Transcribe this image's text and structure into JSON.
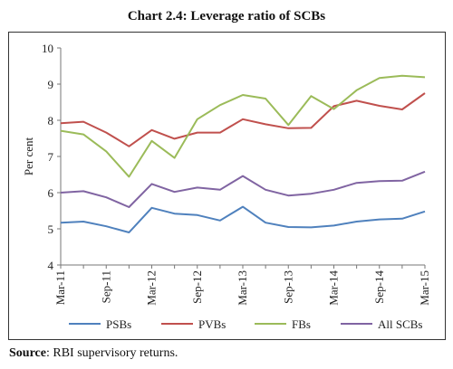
{
  "title": "Chart 2.4: Leverage ratio of SCBs",
  "source_label": "Source",
  "source_text": ": RBI supervisory returns.",
  "chart_data": {
    "type": "line",
    "title": "Chart 2.4: Leverage ratio of SCBs",
    "xlabel": "",
    "ylabel": "Per cent",
    "ylim": [
      4,
      10
    ],
    "yticks": [
      4,
      5,
      6,
      7,
      8,
      9,
      10
    ],
    "x": [
      "Mar-11",
      "Jun-11",
      "Sep-11",
      "Dec-11",
      "Mar-12",
      "Jun-12",
      "Sep-12",
      "Dec-12",
      "Mar-13",
      "Jun-13",
      "Sep-13",
      "Dec-13",
      "Mar-14",
      "Jun-14",
      "Sep-14",
      "Dec-14",
      "Mar-15"
    ],
    "xtick_labels": [
      "Mar-11",
      "",
      "Sep-11",
      "",
      "Mar-12",
      "",
      "Sep-12",
      "",
      "Mar-13",
      "",
      "Sep-13",
      "",
      "Mar-14",
      "",
      "Sep-14",
      "",
      "Mar-15"
    ],
    "grid": false,
    "legend_position": "bottom",
    "series": [
      {
        "name": "PSBs",
        "color": "#4f81bd",
        "values": [
          5.17,
          5.2,
          5.07,
          4.9,
          5.58,
          5.42,
          5.38,
          5.23,
          5.61,
          5.17,
          5.05,
          5.04,
          5.09,
          5.2,
          5.26,
          5.28,
          5.48
        ]
      },
      {
        "name": "PVBs",
        "color": "#c0504d",
        "values": [
          7.92,
          7.96,
          7.66,
          7.28,
          7.73,
          7.49,
          7.66,
          7.66,
          8.03,
          7.89,
          7.78,
          7.79,
          8.39,
          8.54,
          8.4,
          8.3,
          8.75
        ]
      },
      {
        "name": "FBs",
        "color": "#9bbb59",
        "values": [
          7.71,
          7.61,
          7.14,
          6.44,
          7.43,
          6.96,
          8.03,
          8.42,
          8.7,
          8.6,
          7.87,
          8.67,
          8.31,
          8.83,
          9.17,
          9.23,
          9.19
        ]
      },
      {
        "name": "All SCBs",
        "color": "#8064a2",
        "values": [
          6.0,
          6.04,
          5.87,
          5.6,
          6.24,
          6.02,
          6.14,
          6.08,
          6.46,
          6.08,
          5.92,
          5.97,
          6.08,
          6.27,
          6.32,
          6.33,
          6.58
        ]
      }
    ]
  }
}
